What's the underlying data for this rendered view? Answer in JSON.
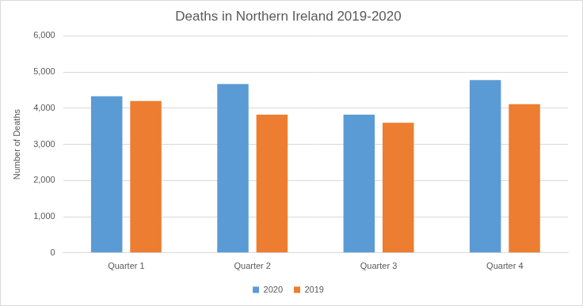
{
  "chart_data": {
    "type": "bar",
    "title": "Deaths in Northern Ireland 2019-2020",
    "y_label": "Number of Deaths",
    "categories": [
      "Quarter 1",
      "Quarter 2",
      "Quarter 3",
      "Quarter 4"
    ],
    "series": [
      {
        "name": "2020",
        "color": "#5b9bd5",
        "values": [
          4330,
          4670,
          3820,
          4780
        ]
      },
      {
        "name": "2019",
        "color": "#ed7d31",
        "values": [
          4200,
          3820,
          3600,
          4110
        ]
      }
    ],
    "ylim": [
      0,
      6000
    ],
    "yticks": [
      0,
      {
        "value": 1000,
        "label": "1,000"
      },
      {
        "value": 2000,
        "label": "2,000"
      },
      {
        "value": 3000,
        "label": "3,000"
      },
      {
        "value": 4000,
        "label": "4,000"
      },
      {
        "value": 5000,
        "label": "5,000"
      },
      {
        "value": 6000,
        "label": "6,000"
      }
    ],
    "grid": true,
    "legend": "bottom"
  }
}
